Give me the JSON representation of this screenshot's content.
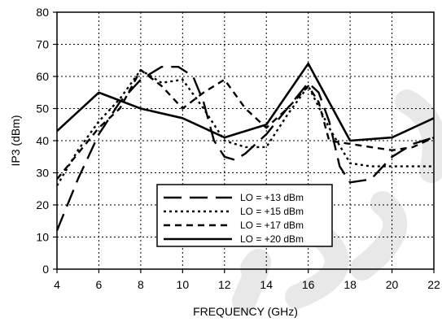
{
  "chart_data": {
    "type": "line",
    "title": "",
    "xlabel": "FREQUENCY (GHz)",
    "ylabel": "IP3 (dBm)",
    "xlim": [
      4,
      22
    ],
    "ylim": [
      0,
      80
    ],
    "x_ticks": [
      4,
      6,
      8,
      10,
      12,
      14,
      16,
      18,
      20,
      22
    ],
    "y_ticks": [
      0,
      10,
      20,
      30,
      40,
      50,
      60,
      70,
      80
    ],
    "grid": true,
    "legend_position": "bottom-center",
    "series": [
      {
        "name": "LO = +13 dBm",
        "style": "long-dash",
        "color": "#000000",
        "points": [
          [
            4,
            12
          ],
          [
            5,
            28
          ],
          [
            6,
            42
          ],
          [
            7,
            52
          ],
          [
            8,
            59
          ],
          [
            9,
            63
          ],
          [
            9.8,
            63
          ],
          [
            10.5,
            60
          ],
          [
            11,
            52
          ],
          [
            11.5,
            40
          ],
          [
            12,
            35
          ],
          [
            12.5,
            34
          ],
          [
            13,
            36
          ],
          [
            14,
            42
          ],
          [
            15,
            50
          ],
          [
            16,
            58
          ],
          [
            16.5,
            55
          ],
          [
            17,
            46
          ],
          [
            17.5,
            32
          ],
          [
            18,
            27
          ],
          [
            19,
            28
          ],
          [
            20,
            35
          ],
          [
            21,
            39
          ],
          [
            22,
            41
          ]
        ]
      },
      {
        "name": "LO = +15 dBm",
        "style": "dotted",
        "color": "#000000",
        "points": [
          [
            4,
            26
          ],
          [
            5,
            37
          ],
          [
            6,
            46
          ],
          [
            7,
            53
          ],
          [
            8,
            62
          ],
          [
            9,
            58
          ],
          [
            10,
            59
          ],
          [
            11,
            50
          ],
          [
            12,
            40
          ],
          [
            13,
            38
          ],
          [
            14,
            38
          ],
          [
            15,
            48
          ],
          [
            16,
            57
          ],
          [
            17,
            44
          ],
          [
            18,
            33
          ],
          [
            19,
            32
          ],
          [
            20,
            32
          ],
          [
            21,
            32
          ],
          [
            22,
            32
          ]
        ]
      },
      {
        "name": "LO = +17 dBm",
        "style": "short-dash",
        "color": "#000000",
        "points": [
          [
            4,
            28
          ],
          [
            5,
            36
          ],
          [
            6,
            44
          ],
          [
            7,
            50
          ],
          [
            8,
            62
          ],
          [
            9,
            57
          ],
          [
            10,
            50
          ],
          [
            11,
            55
          ],
          [
            12,
            59
          ],
          [
            13,
            50
          ],
          [
            14,
            44
          ],
          [
            15,
            50
          ],
          [
            16,
            57
          ],
          [
            16.5,
            52
          ],
          [
            17,
            40
          ],
          [
            18,
            39
          ],
          [
            19,
            38
          ],
          [
            20,
            37
          ],
          [
            21,
            38
          ],
          [
            22,
            41
          ]
        ]
      },
      {
        "name": "LO = +20 dBm",
        "style": "solid",
        "color": "#000000",
        "points": [
          [
            4,
            43
          ],
          [
            6,
            55
          ],
          [
            8,
            50
          ],
          [
            10,
            47
          ],
          [
            12,
            41
          ],
          [
            14,
            45
          ],
          [
            16,
            64
          ],
          [
            18,
            40
          ],
          [
            20,
            41
          ],
          [
            22,
            47
          ]
        ]
      }
    ]
  }
}
